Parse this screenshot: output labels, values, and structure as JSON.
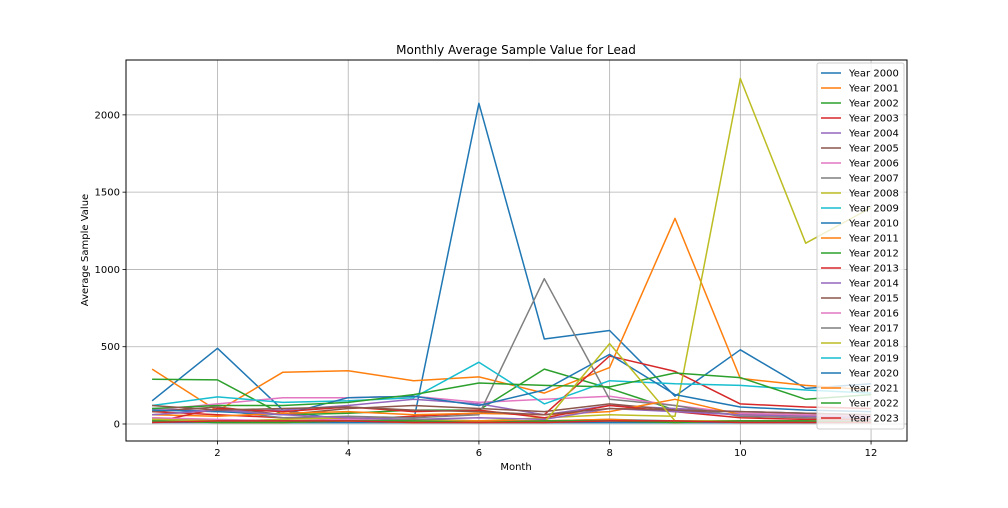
{
  "chart_data": {
    "type": "line",
    "title": "Monthly Average Sample Value for Lead",
    "xlabel": "Month",
    "ylabel": "Average Sample Value",
    "x": [
      1,
      2,
      3,
      4,
      5,
      6,
      7,
      8,
      9,
      10,
      11,
      12
    ],
    "xlim": [
      0.6,
      12.55
    ],
    "ylim": [
      -110,
      2355
    ],
    "xticks": [
      2,
      4,
      6,
      8,
      10,
      12
    ],
    "yticks": [
      0,
      500,
      1000,
      1500,
      2000
    ],
    "grid": true,
    "legend_position": "top-right",
    "series": [
      {
        "name": "Year 2000",
        "color": "#1f77b4",
        "values": [
          150,
          490,
          90,
          20,
          20,
          2075,
          550,
          605,
          180,
          480,
          230,
          260
        ]
      },
      {
        "name": "Year 2001",
        "color": "#ff7f0e",
        "values": [
          355,
          85,
          335,
          345,
          280,
          305,
          200,
          365,
          1330,
          295,
          250,
          220
        ]
      },
      {
        "name": "Year 2002",
        "color": "#2ca02c",
        "values": [
          290,
          285,
          60,
          70,
          90,
          90,
          355,
          230,
          90,
          80,
          70,
          60
        ]
      },
      {
        "name": "Year 2003",
        "color": "#d62728",
        "values": [
          80,
          60,
          40,
          30,
          50,
          70,
          60,
          440,
          340,
          130,
          110,
          100
        ]
      },
      {
        "name": "Year 2004",
        "color": "#9467bd",
        "values": [
          100,
          80,
          90,
          120,
          160,
          130,
          60,
          120,
          100,
          80,
          70,
          60
        ]
      },
      {
        "name": "Year 2005",
        "color": "#8c564b",
        "values": [
          80,
          110,
          60,
          100,
          120,
          100,
          80,
          130,
          90,
          60,
          50,
          40
        ]
      },
      {
        "name": "Year 2006",
        "color": "#e377c2",
        "values": [
          90,
          130,
          170,
          170,
          180,
          140,
          160,
          180,
          120,
          70,
          60,
          50
        ]
      },
      {
        "name": "Year 2007",
        "color": "#7f7f7f",
        "values": [
          60,
          90,
          40,
          50,
          40,
          60,
          940,
          160,
          120,
          50,
          40,
          30
        ]
      },
      {
        "name": "Year 2008",
        "color": "#bcbd22",
        "values": [
          40,
          20,
          30,
          40,
          30,
          20,
          40,
          60,
          50,
          2235,
          1170,
          1400
        ]
      },
      {
        "name": "Year 2009",
        "color": "#17becf",
        "values": [
          120,
          175,
          140,
          150,
          170,
          400,
          130,
          280,
          260,
          250,
          220,
          200
        ]
      },
      {
        "name": "Year 2010",
        "color": "#1f77b4",
        "values": [
          90,
          80,
          60,
          170,
          180,
          120,
          220,
          450,
          190,
          110,
          90,
          80
        ]
      },
      {
        "name": "Year 2011",
        "color": "#ff7f0e",
        "values": [
          60,
          50,
          70,
          80,
          60,
          70,
          60,
          80,
          160,
          60,
          50,
          40
        ]
      },
      {
        "name": "Year 2012",
        "color": "#2ca02c",
        "values": [
          100,
          120,
          120,
          140,
          190,
          265,
          250,
          240,
          330,
          300,
          160,
          190
        ]
      },
      {
        "name": "Year 2013",
        "color": "#d62728",
        "values": [
          10,
          100,
          80,
          110,
          80,
          90,
          40,
          120,
          80,
          40,
          30,
          30
        ]
      },
      {
        "name": "Year 2014",
        "color": "#9467bd",
        "values": [
          60,
          90,
          60,
          40,
          30,
          40,
          30,
          100,
          80,
          60,
          50,
          40
        ]
      },
      {
        "name": "Year 2015",
        "color": "#8c564b",
        "values": [
          120,
          90,
          100,
          110,
          90,
          80,
          60,
          100,
          90,
          80,
          70,
          60
        ]
      },
      {
        "name": "Year 2016",
        "color": "#e377c2",
        "values": [
          40,
          30,
          20,
          30,
          20,
          20,
          10,
          20,
          20,
          20,
          20,
          10
        ]
      },
      {
        "name": "Year 2017",
        "color": "#7f7f7f",
        "values": [
          30,
          20,
          20,
          20,
          30,
          20,
          20,
          30,
          20,
          20,
          20,
          20
        ]
      },
      {
        "name": "Year 2018",
        "color": "#bcbd22",
        "values": [
          30,
          20,
          10,
          20,
          20,
          20,
          10,
          520,
          20,
          20,
          10,
          10
        ]
      },
      {
        "name": "Year 2019",
        "color": "#17becf",
        "values": [
          20,
          10,
          10,
          10,
          10,
          10,
          10,
          10,
          10,
          10,
          10,
          10
        ]
      },
      {
        "name": "Year 2020",
        "color": "#1f77b4",
        "values": [
          10,
          10,
          10,
          10,
          10,
          10,
          10,
          10,
          10,
          10,
          10,
          10
        ]
      },
      {
        "name": "Year 2021",
        "color": "#ff7f0e",
        "values": [
          20,
          10,
          10,
          20,
          10,
          20,
          20,
          30,
          10,
          20,
          20,
          10
        ]
      },
      {
        "name": "Year 2022",
        "color": "#2ca02c",
        "values": [
          20,
          10,
          10,
          20,
          20,
          10,
          20,
          20,
          10,
          20,
          20,
          10
        ]
      },
      {
        "name": "Year 2023",
        "color": "#d62728",
        "values": [
          10,
          20,
          20,
          20,
          10,
          10,
          10,
          20,
          20,
          10,
          10,
          10
        ]
      }
    ]
  }
}
